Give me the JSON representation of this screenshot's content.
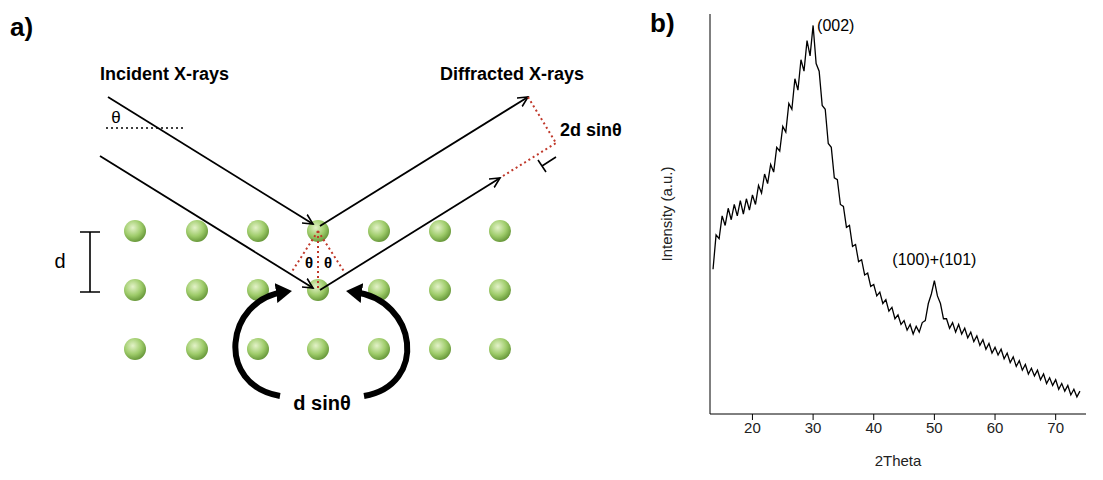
{
  "panel_a": {
    "letter": "a)",
    "incident_label": "Incident X-rays",
    "diffracted_label": "Diffracted X-rays",
    "angle_label": "θ",
    "spacing_label": "d",
    "path_label": "d sinθ",
    "path_difference_label": "2d sinθ"
  },
  "chart_data": {
    "type": "line",
    "panel_label": "b)",
    "x_label": "2Theta",
    "y_label": "Intensity (a.u.)",
    "color": "#000000",
    "tick_labels": "x",
    "xlim": [
      13,
      75
    ],
    "xticks": [
      20,
      30,
      40,
      50,
      60,
      70
    ],
    "ylim": [
      0,
      105
    ],
    "annotations": [
      {
        "text": "(002)",
        "x": 30
      },
      {
        "text": "(100)+(101)",
        "x": 50
      }
    ],
    "x": [
      13.5,
      14,
      14.5,
      15,
      15.5,
      16,
      16.5,
      17,
      17.5,
      18,
      18.5,
      19,
      19.5,
      20,
      20.5,
      21,
      21.5,
      22,
      22.5,
      23,
      23.5,
      24,
      24.5,
      25,
      25.5,
      26,
      26.5,
      27,
      27.5,
      28,
      28.5,
      29,
      29.5,
      30,
      30.5,
      31,
      31.5,
      32,
      32.5,
      33,
      33.5,
      34,
      34.5,
      35,
      35.5,
      36,
      36.5,
      37,
      37.5,
      38,
      38.5,
      39,
      39.5,
      40,
      40.5,
      41,
      41.5,
      42,
      42.5,
      43,
      43.5,
      44,
      44.5,
      45,
      45.5,
      46,
      46.5,
      47,
      47.5,
      48,
      48.5,
      49,
      49.5,
      50,
      50.5,
      51,
      51.5,
      52,
      52.5,
      53,
      53.5,
      54,
      54.5,
      55,
      55.5,
      56,
      56.5,
      57,
      57.5,
      58,
      58.5,
      59,
      59.5,
      60,
      60.5,
      61,
      61.5,
      62,
      62.5,
      63,
      63.5,
      64,
      64.5,
      65,
      65.5,
      66,
      66.5,
      67,
      67.5,
      68,
      68.5,
      69,
      69.5,
      70,
      70.5,
      71,
      71.5,
      72,
      72.5,
      73,
      73.5,
      74
    ],
    "values": [
      38,
      47,
      46,
      52,
      49.5,
      54,
      51,
      55,
      52,
      56,
      52.5,
      56.5,
      53.5,
      57.5,
      55,
      60,
      58,
      63,
      60.5,
      65.5,
      63.5,
      70,
      69,
      75.5,
      74,
      81.5,
      80,
      88,
      85,
      93,
      90,
      98,
      94,
      102,
      92,
      90,
      81,
      80,
      71,
      70,
      62,
      61.5,
      55,
      54.5,
      49,
      49.5,
      44,
      44.5,
      40,
      40.5,
      36.5,
      37,
      33.5,
      34,
      31,
      32,
      29,
      30,
      27,
      28,
      25,
      26,
      23.5,
      24.5,
      22,
      23.5,
      21,
      23,
      21.5,
      24,
      24.5,
      29,
      31.5,
      35,
      31,
      29,
      25,
      25,
      22.5,
      24,
      21.5,
      23.5,
      21,
      22.5,
      20,
      21.5,
      19,
      20.5,
      18,
      19.5,
      17,
      18.5,
      16,
      17.5,
      15.5,
      17,
      14.5,
      16,
      13.5,
      15,
      12.5,
      14,
      11.5,
      13,
      10.5,
      12,
      10,
      11.5,
      9,
      10.5,
      8,
      9.5,
      7.5,
      9,
      6.5,
      8,
      6,
      7.5,
      5,
      6.5,
      4.5,
      6
    ]
  }
}
